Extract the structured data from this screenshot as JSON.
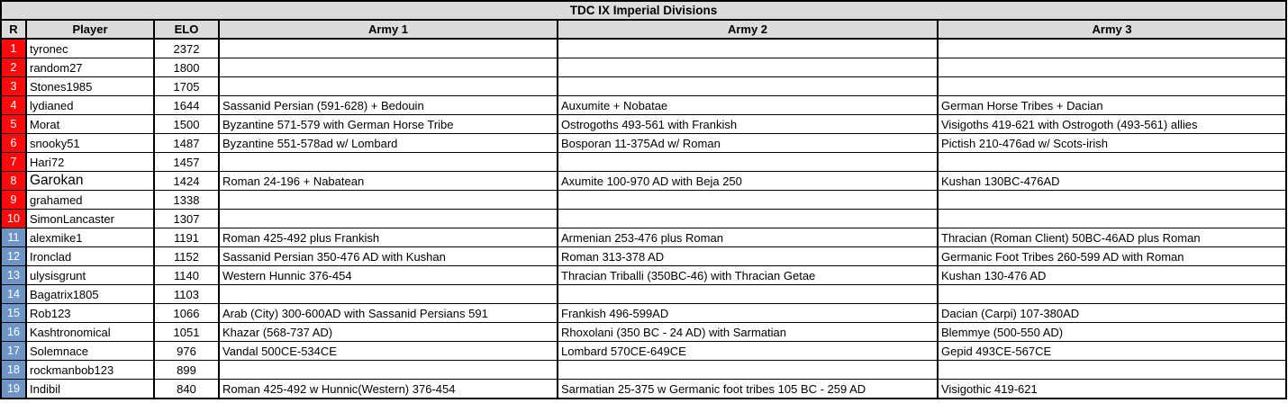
{
  "title": "TDC IX Imperial Divisions",
  "columns": [
    "R",
    "Player",
    "ELO",
    "Army 1",
    "Army 2",
    "Army 3"
  ],
  "colors": {
    "header_bg": "#DCDCDC",
    "rank_red": "#FA0A0A",
    "rank_blue": "#6D96C6",
    "grid": "#000000"
  },
  "rows": [
    {
      "rank": "1",
      "rank_color": "red",
      "player": "tyronec",
      "elo": "2372",
      "army1": "",
      "army2": "",
      "army3": ""
    },
    {
      "rank": "2",
      "rank_color": "red",
      "player": "random27",
      "elo": "1800",
      "army1": "",
      "army2": "",
      "army3": ""
    },
    {
      "rank": "3",
      "rank_color": "red",
      "player": "Stones1985",
      "elo": "1705",
      "army1": "",
      "army2": "",
      "army3": ""
    },
    {
      "rank": "4",
      "rank_color": "red",
      "player": "lydianed",
      "elo": "1644",
      "army1": "Sassanid Persian (591-628) + Bedouin",
      "army2": "Auxumite + Nobatae",
      "army3": "German Horse Tribes + Dacian"
    },
    {
      "rank": "5",
      "rank_color": "red",
      "player": "Morat",
      "elo": "1500",
      "army1": "Byzantine 571-579 with German Horse Tribe",
      "army2": "Ostrogoths 493-561 with Frankish",
      "army3": "Visigoths 419-621 with Ostrogoth (493-561) allies"
    },
    {
      "rank": "6",
      "rank_color": "red",
      "player": "snooky51",
      "elo": "1487",
      "army1": "Byzantine 551-578ad w/ Lombard",
      "army2": "Bosporan 11-375Ad w/ Roman",
      "army3": "Pictish 210-476ad w/ Scots-irish"
    },
    {
      "rank": "7",
      "rank_color": "red",
      "player": "Hari72",
      "elo": "1457",
      "army1": "",
      "army2": "",
      "army3": ""
    },
    {
      "rank": "8",
      "rank_color": "red",
      "player": "Garokan",
      "elo": "1424",
      "army1": "Roman 24-196 + Nabatean",
      "army2": "Axumite 100-970 AD with Beja 250",
      "army3": "Kushan 130BC-476AD",
      "player_emphasis": true
    },
    {
      "rank": "9",
      "rank_color": "red",
      "player": "grahamed",
      "elo": "1338",
      "army1": "",
      "army2": "",
      "army3": ""
    },
    {
      "rank": "10",
      "rank_color": "red",
      "player": "SimonLancaster",
      "elo": "1307",
      "army1": "",
      "army2": "",
      "army3": ""
    },
    {
      "rank": "11",
      "rank_color": "blue",
      "player": "alexmike1",
      "elo": "1191",
      "army1": "Roman 425-492 plus Frankish",
      "army2": "Armenian 253-476 plus Roman",
      "army3": "Thracian (Roman Client) 50BC-46AD plus Roman"
    },
    {
      "rank": "12",
      "rank_color": "blue",
      "player": "Ironclad",
      "elo": "1152",
      "army1": "Sassanid Persian 350-476 AD with Kushan",
      "army2": "Roman 313-378 AD",
      "army3": "Germanic Foot Tribes 260-599 AD with Roman"
    },
    {
      "rank": "13",
      "rank_color": "blue",
      "player": "ulysisgrunt",
      "elo": "1140",
      "army1": "Western Hunnic 376-454",
      "army2": "Thracian Triballi (350BC-46) with Thracian Getae",
      "army3": "Kushan 130-476 AD"
    },
    {
      "rank": "14",
      "rank_color": "blue",
      "player": "Bagatrix1805",
      "elo": "1103",
      "army1": "",
      "army2": "",
      "army3": ""
    },
    {
      "rank": "15",
      "rank_color": "blue",
      "player": "Rob123",
      "elo": "1066",
      "army1": "Arab (City) 300-600AD with Sassanid Persians 591",
      "army2": "Frankish 496-599AD",
      "army3": "Dacian (Carpi) 107-380AD"
    },
    {
      "rank": "16",
      "rank_color": "blue",
      "player": "Kashtronomical",
      "elo": "1051",
      "army1": "Khazar (568-737 AD)",
      "army2": "Rhoxolani (350 BC - 24 AD) with Sarmatian",
      "army3": "Blemmye (500-550 AD)"
    },
    {
      "rank": "17",
      "rank_color": "blue",
      "player": "Solemnace",
      "elo": "976",
      "army1": "Vandal 500CE-534CE",
      "army2": "Lombard 570CE-649CE",
      "army3": "Gepid 493CE-567CE"
    },
    {
      "rank": "18",
      "rank_color": "blue",
      "player": "rockmanbob123",
      "elo": "899",
      "army1": "",
      "army2": "",
      "army3": ""
    },
    {
      "rank": "19",
      "rank_color": "blue",
      "player": "Indibil",
      "elo": "840",
      "army1": "Roman 425-492 w Hunnic(Western) 376-454",
      "army2": "Sarmatian 25-375 w Germanic foot tribes 105 BC - 259 AD",
      "army3": "Visigothic 419-621"
    }
  ]
}
